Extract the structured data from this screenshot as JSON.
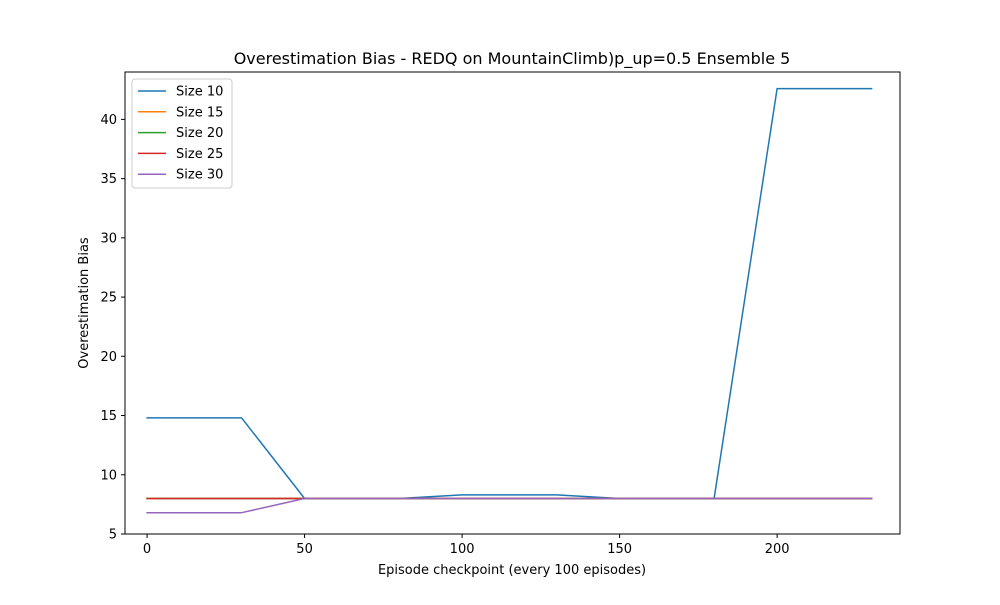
{
  "chart_data": {
    "type": "line",
    "title": "Overestimation Bias - REDQ on MountainClimb)p_up=0.5 Ensemble 5",
    "xlabel": "Episode checkpoint (every 100 episodes)",
    "ylabel": "Overestimation Bias",
    "xlim": [
      -7,
      239
    ],
    "ylim": [
      5,
      44
    ],
    "x_ticks": [
      0,
      50,
      100,
      150,
      200
    ],
    "y_ticks": [
      5,
      10,
      15,
      20,
      25,
      30,
      35,
      40
    ],
    "grid": false,
    "legend_position": "top-left",
    "x": [
      0,
      30,
      50,
      80,
      100,
      130,
      150,
      180,
      200,
      230
    ],
    "series": [
      {
        "name": "Size 10",
        "color": "#1f77b4",
        "values": [
          14.8,
          14.8,
          8.0,
          8.0,
          8.3,
          8.3,
          8.0,
          8.0,
          42.6,
          42.6
        ]
      },
      {
        "name": "Size 15",
        "color": "#ff7f0e",
        "values": [
          8.0,
          8.0,
          8.0,
          8.0,
          8.0,
          8.0,
          8.0,
          8.0,
          8.0,
          8.0
        ]
      },
      {
        "name": "Size 20",
        "color": "#2ca02c",
        "values": [
          8.0,
          8.0,
          8.0,
          8.0,
          8.0,
          8.0,
          8.0,
          8.0,
          8.0,
          8.0
        ]
      },
      {
        "name": "Size 25",
        "color": "#d62728",
        "values": [
          8.0,
          8.0,
          8.0,
          8.0,
          8.0,
          8.0,
          8.0,
          8.0,
          8.0,
          8.0
        ]
      },
      {
        "name": "Size 30",
        "color": "#9467bd",
        "values": [
          6.8,
          6.8,
          8.0,
          8.0,
          8.0,
          8.0,
          8.0,
          8.0,
          8.0,
          8.0
        ]
      }
    ]
  }
}
